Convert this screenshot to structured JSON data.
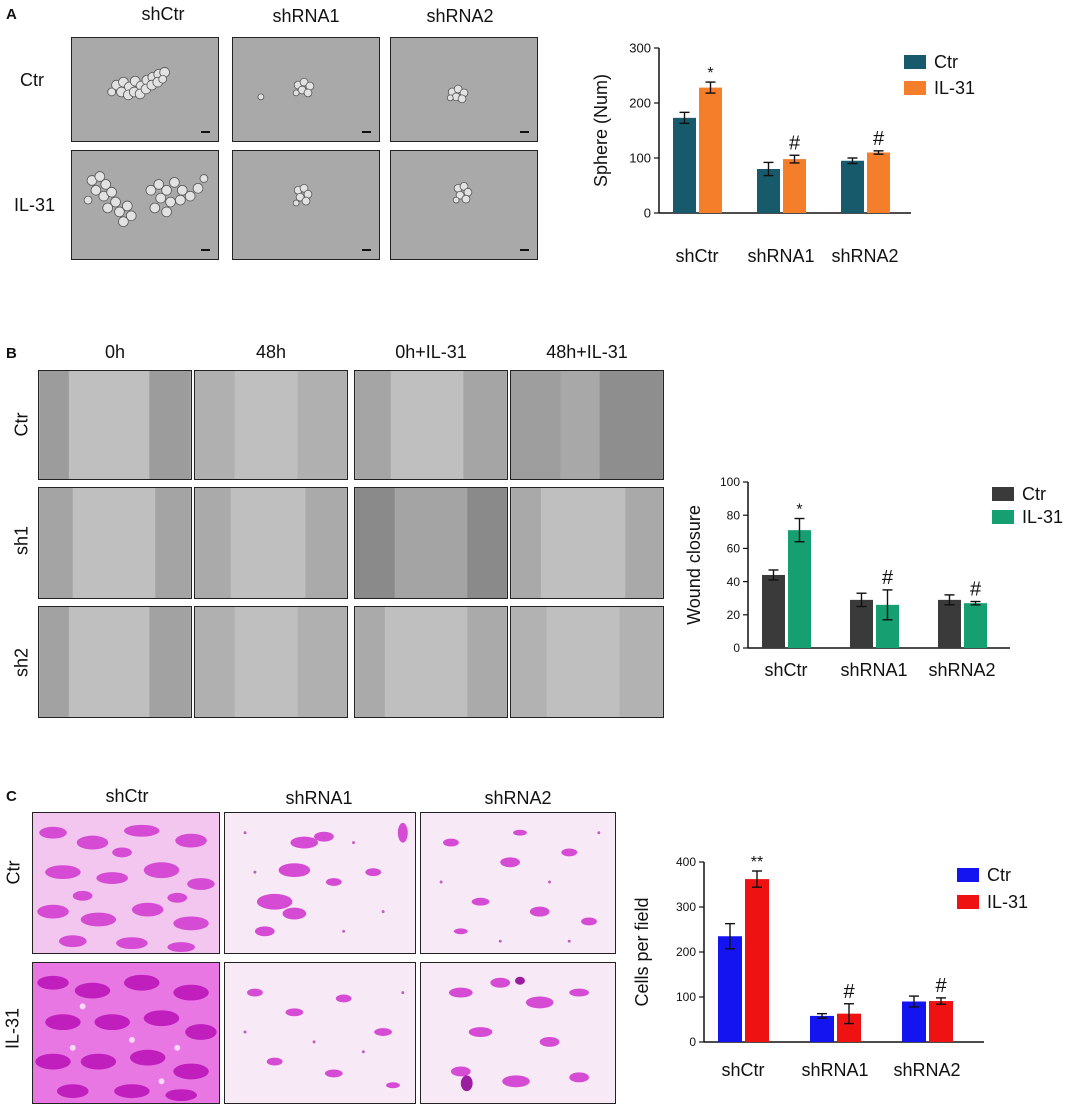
{
  "panels": {
    "A": {
      "letter": "A",
      "columns": [
        "shCtr",
        "shRNA1",
        "shRNA2"
      ],
      "rows": [
        "Ctr",
        "IL-31"
      ]
    },
    "B": {
      "letter": "B",
      "columns": [
        "0h",
        "48h",
        "0h+IL-31",
        "48h+IL-31"
      ],
      "rows": [
        "Ctr",
        "sh1",
        "sh2"
      ]
    },
    "C": {
      "letter": "C",
      "columns": [
        "shCtr",
        "shRNA1",
        "shRNA2"
      ],
      "rows": [
        "Ctr",
        "IL-31"
      ]
    }
  },
  "chart_data": [
    {
      "type": "bar",
      "panel": "A",
      "categories": [
        "shCtr",
        "shRNA1",
        "shRNA2"
      ],
      "series": [
        {
          "name": "Ctr",
          "color": "#165a6b",
          "values": [
            173,
            80,
            95
          ],
          "errors": [
            10,
            12,
            5
          ]
        },
        {
          "name": "IL-31",
          "color": "#f57e2a",
          "values": [
            228,
            98,
            110
          ],
          "errors": [
            10,
            7,
            3
          ]
        }
      ],
      "annotations": [
        [
          "",
          "*"
        ],
        [
          "",
          "#"
        ],
        [
          "",
          "#"
        ]
      ],
      "ylabel": "Sphere (Num)",
      "ylim": [
        0,
        300
      ],
      "yticks": [
        "0",
        "100",
        "200",
        "300"
      ],
      "legend": "top-right"
    },
    {
      "type": "bar",
      "panel": "B",
      "categories": [
        "shCtr",
        "shRNA1",
        "shRNA2"
      ],
      "series": [
        {
          "name": "Ctr",
          "color": "#3a3a3a",
          "values": [
            44,
            29,
            29
          ],
          "errors": [
            3,
            4,
            3
          ]
        },
        {
          "name": "IL-31",
          "color": "#16a071",
          "values": [
            71,
            26,
            27
          ],
          "errors": [
            7,
            9,
            1
          ]
        }
      ],
      "annotations": [
        [
          "",
          "*"
        ],
        [
          "",
          "#"
        ],
        [
          "",
          "#"
        ]
      ],
      "ylabel": "Wound closure",
      "ylim": [
        0,
        100
      ],
      "yticks": [
        "0",
        "20",
        "40",
        "60",
        "80",
        "100"
      ],
      "legend": "top-right"
    },
    {
      "type": "bar",
      "panel": "C",
      "categories": [
        "shCtr",
        "shRNA1",
        "shRNA2"
      ],
      "series": [
        {
          "name": "Ctr",
          "color": "#1414f0",
          "values": [
            235,
            58,
            90
          ],
          "errors": [
            28,
            5,
            12
          ]
        },
        {
          "name": "IL-31",
          "color": "#ee1212",
          "values": [
            362,
            63,
            91
          ],
          "errors": [
            18,
            22,
            7
          ]
        }
      ],
      "annotations": [
        [
          "",
          "**"
        ],
        [
          "",
          "#"
        ],
        [
          "",
          "#"
        ]
      ],
      "ylabel": "Cells per field",
      "ylim": [
        0,
        400
      ],
      "yticks": [
        "0",
        "100",
        "200",
        "300",
        "400"
      ],
      "legend": "top-right"
    }
  ]
}
